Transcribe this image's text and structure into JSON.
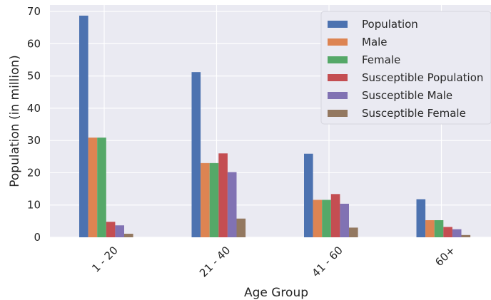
{
  "chart_data": {
    "type": "bar",
    "title": "",
    "xlabel": "Age Group",
    "ylabel": "Population (in million)",
    "ylim": [
      0,
      72
    ],
    "yticks": [
      0,
      10,
      20,
      30,
      40,
      50,
      60,
      70
    ],
    "grid": true,
    "legend_position": "top-right",
    "categories": [
      "1 - 20",
      "21 - 40",
      "41 - 60",
      "60+"
    ],
    "series": [
      {
        "name": "Population",
        "color": "#4c72b0",
        "values": [
          68.7,
          51.2,
          25.9,
          11.8
        ]
      },
      {
        "name": "Male",
        "color": "#dd8452",
        "values": [
          30.9,
          23.0,
          11.6,
          5.3
        ]
      },
      {
        "name": "Female",
        "color": "#55a868",
        "values": [
          30.9,
          23.0,
          11.6,
          5.3
        ]
      },
      {
        "name": "Susceptible Population",
        "color": "#c44e52",
        "values": [
          4.8,
          26.0,
          13.4,
          3.2
        ]
      },
      {
        "name": "Susceptible Male",
        "color": "#8172b3",
        "values": [
          3.7,
          20.2,
          10.4,
          2.5
        ]
      },
      {
        "name": "Susceptible Female",
        "color": "#937860",
        "values": [
          1.1,
          5.8,
          3.0,
          0.7
        ]
      }
    ]
  }
}
